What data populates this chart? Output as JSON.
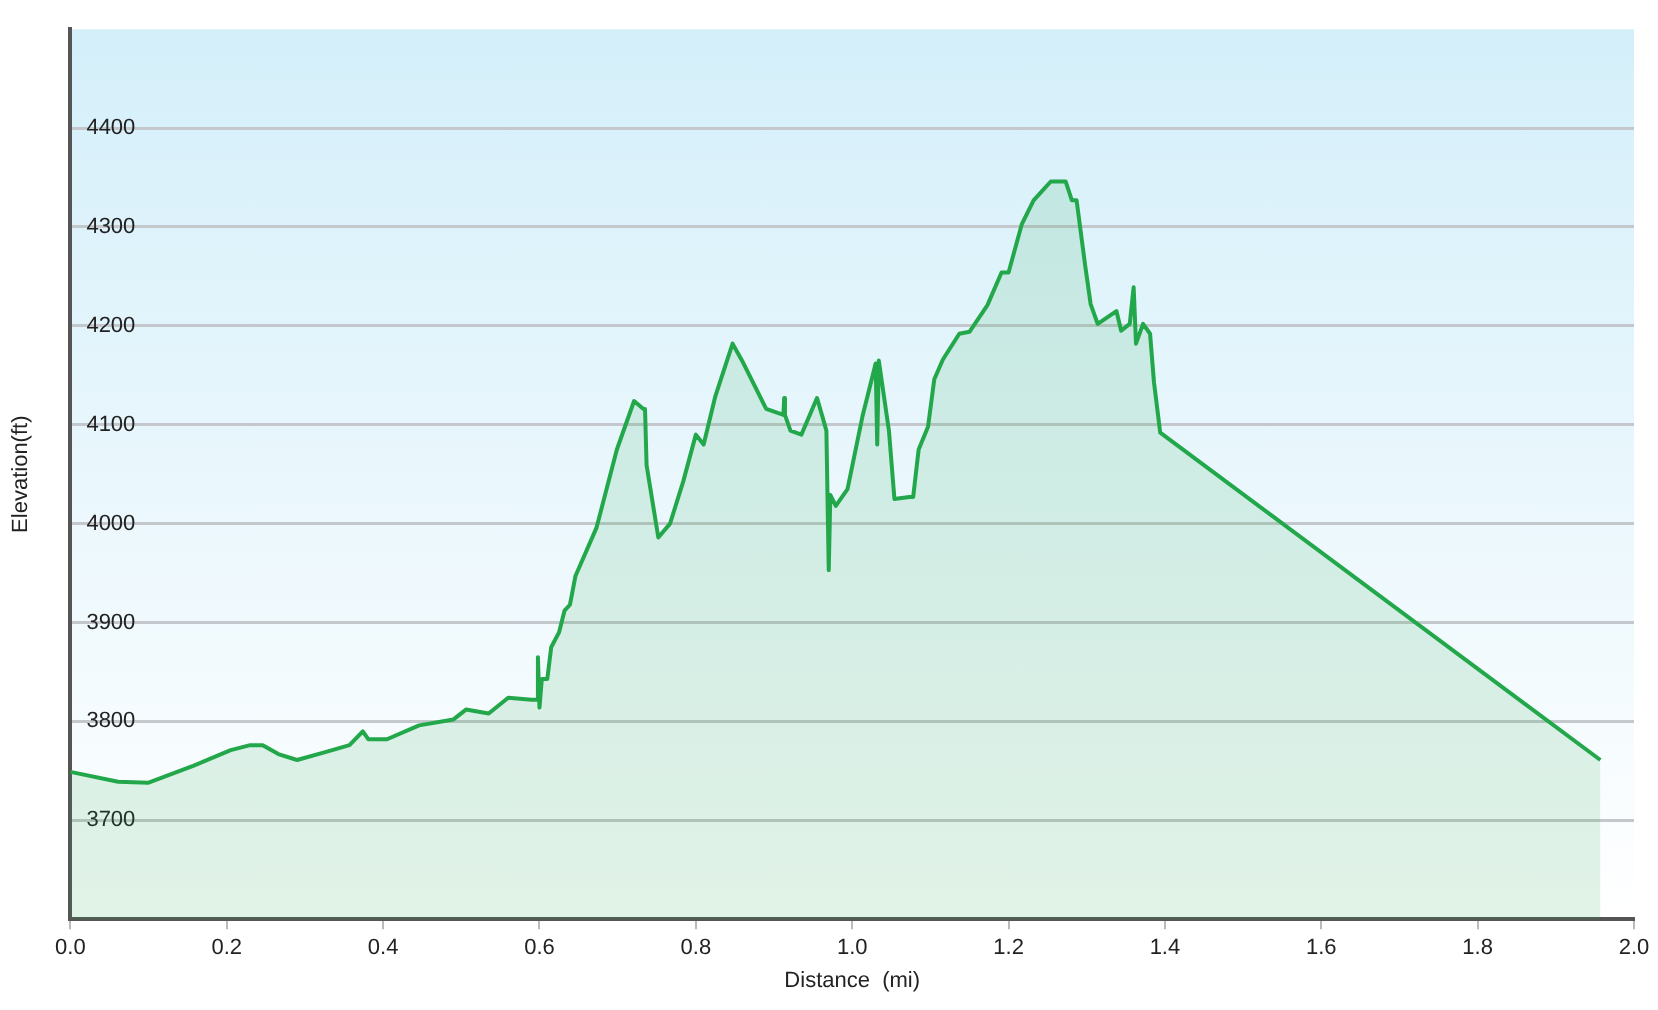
{
  "chart_data": {
    "type": "area",
    "xlabel": "Distance  (mi)",
    "ylabel": "Elevation(ft)",
    "xlim": [
      0,
      2.0
    ],
    "xticks": [
      {
        "value": 0,
        "label": "0.0"
      },
      0.2,
      0.4,
      0.6,
      0.8,
      {
        "value": 1,
        "label": "1.0"
      },
      1.2,
      1.4,
      1.6,
      1.8,
      {
        "value": 2,
        "label": "2.0"
      }
    ],
    "ylim": [
      3600,
      4500
    ],
    "yticks": [
      3700,
      3800,
      3900,
      4000,
      4100,
      4200,
      4300,
      4400
    ],
    "grid": "y",
    "legend": false,
    "marker": "none",
    "line_style": "solid",
    "series": [
      {
        "color": "#22a84a",
        "x": [
          0,
          0.061,
          0.1,
          0.157,
          0.205,
          0.23,
          0.246,
          0.266,
          0.29,
          0.326,
          0.357,
          0.374,
          0.381,
          0.405,
          0.446,
          0.49,
          0.506,
          0.535,
          0.56,
          0.59,
          0.597,
          0.598,
          0.6,
          0.603,
          0.61,
          0.615,
          0.625,
          0.632,
          0.639,
          0.646,
          0.673,
          0.699,
          0.721,
          0.733,
          0.735,
          0.737,
          0.752,
          0.767,
          0.784,
          0.8,
          0.81,
          0.825,
          0.847,
          0.859,
          0.89,
          0.912,
          0.913,
          0.914,
          0.921,
          0.935,
          0.955,
          0.962,
          0.967,
          0.97,
          0.972,
          0.979,
          0.994,
          1.013,
          1.03,
          1.032,
          1.034,
          1.047,
          1.054,
          1.073,
          1.078,
          1.085,
          1.097,
          1.105,
          1.116,
          1.137,
          1.15,
          1.173,
          1.191,
          1.2,
          1.217,
          1.232,
          1.239,
          1.254,
          1.273,
          1.281,
          1.287,
          1.298,
          1.305,
          1.314,
          1.338,
          1.344,
          1.355,
          1.36,
          1.363,
          1.372,
          1.381,
          1.386,
          1.394,
          1.957
        ],
        "values": [
          3749,
          3739,
          3738,
          3755,
          3771,
          3776,
          3776,
          3767,
          3761,
          3769,
          3776,
          3790,
          3782,
          3782,
          3796,
          3802,
          3812,
          3808,
          3824,
          3822,
          3822,
          3865,
          3814,
          3843,
          3843,
          3875,
          3890,
          3912,
          3918,
          3947,
          3996,
          4075,
          4124,
          4116,
          4116,
          4059,
          3986,
          4000,
          4043,
          4090,
          4080,
          4129,
          4182,
          4165,
          4116,
          4110,
          4127,
          4110,
          4094,
          4090,
          4127,
          4108,
          4094,
          3953,
          4029,
          4018,
          4035,
          4108,
          4162,
          4080,
          4165,
          4094,
          4025,
          4027,
          4027,
          4075,
          4098,
          4146,
          4166,
          4192,
          4194,
          4221,
          4254,
          4254,
          4303,
          4327,
          4333,
          4346,
          4346,
          4327,
          4327,
          4261,
          4222,
          4202,
          4215,
          4195,
          4202,
          4239,
          4182,
          4202,
          4192,
          4143,
          4092,
          3761
        ]
      }
    ]
  }
}
